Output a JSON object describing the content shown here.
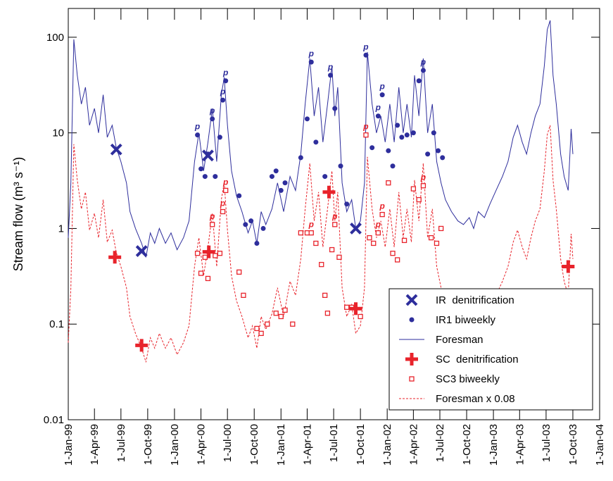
{
  "chart_data": {
    "type": "line",
    "ylabel": "Stream flow (m³ s⁻¹)",
    "log_y": true,
    "ylim": [
      0.01,
      200
    ],
    "yticks": [
      0.01,
      0.1,
      1,
      10,
      100
    ],
    "xlim": [
      "1999-01-01",
      "2004-01-01"
    ],
    "xticks": [
      {
        "value": "1999-01-01",
        "label": "1-Jan-99"
      },
      {
        "value": "1999-04-01",
        "label": "1-Apr-99"
      },
      {
        "value": "1999-07-01",
        "label": "1-Jul-99"
      },
      {
        "value": "1999-10-01",
        "label": "1-Oct-99"
      },
      {
        "value": "2000-01-01",
        "label": "1-Jan-00"
      },
      {
        "value": "2000-04-01",
        "label": "1-Apr-00"
      },
      {
        "value": "2000-07-01",
        "label": "1-Jul-00"
      },
      {
        "value": "2000-10-01",
        "label": "1-Oct-00"
      },
      {
        "value": "2001-01-01",
        "label": "1-Jan-01"
      },
      {
        "value": "2001-04-01",
        "label": "1-Apr-01"
      },
      {
        "value": "2001-07-01",
        "label": "1-Jul-01"
      },
      {
        "value": "2001-10-01",
        "label": "1-Oct-01"
      },
      {
        "value": "2002-01-01",
        "label": "1-Jan-02"
      },
      {
        "value": "2002-04-01",
        "label": "1-Apr-02"
      },
      {
        "value": "2002-07-01",
        "label": "1-Jul-02"
      },
      {
        "value": "2002-10-01",
        "label": "1-Oct-02"
      },
      {
        "value": "2003-01-01",
        "label": "1-Jan-03"
      },
      {
        "value": "2003-04-01",
        "label": "1-Apr-03"
      },
      {
        "value": "2003-07-01",
        "label": "1-Jul-03"
      },
      {
        "value": "2003-10-01",
        "label": "1-Oct-03"
      },
      {
        "value": "2004-01-01",
        "label": "1-Jan-04"
      }
    ],
    "legend": "lower right",
    "series": [
      {
        "name": "IR  denitrification",
        "color": "#2e2e9c",
        "marker": "x",
        "x": [
          "1999-06-15",
          "1999-09-10",
          "2000-04-25",
          "2001-09-15"
        ],
        "values": [
          6.7,
          0.58,
          5.8,
          1.0
        ]
      },
      {
        "name": "IR1 biweekly",
        "color": "#2e2e9c",
        "marker": "dot",
        "x": [
          "2000-03-20",
          "2000-04-01",
          "2000-04-15",
          "2000-04-25",
          "2000-05-10",
          "2000-05-20",
          "2000-06-05",
          "2000-06-15",
          "2000-06-25",
          "2000-08-10",
          "2000-09-01",
          "2000-09-20",
          "2000-10-10",
          "2000-11-01",
          "2000-12-01",
          "2000-12-15",
          "2001-01-01",
          "2001-01-15",
          "2001-03-10",
          "2001-04-01",
          "2001-04-15",
          "2001-05-01",
          "2001-06-01",
          "2001-06-20",
          "2001-07-05",
          "2001-07-25",
          "2001-08-15",
          "2001-10-20",
          "2001-11-10",
          "2001-12-01",
          "2001-12-15",
          "2002-01-05",
          "2002-01-20",
          "2002-02-05",
          "2002-02-20",
          "2002-03-10",
          "2002-04-01",
          "2002-04-20",
          "2002-05-05",
          "2002-05-20",
          "2002-06-10",
          "2002-06-25",
          "2002-07-10"
        ],
        "values": [
          9.5,
          4.2,
          3.5,
          6,
          14,
          3.5,
          9,
          22,
          35,
          2.2,
          1.1,
          1.2,
          0.7,
          1.0,
          3.5,
          4,
          2.5,
          3,
          5.5,
          14,
          55,
          8,
          3.5,
          40,
          18,
          4.5,
          1.8,
          65,
          7,
          15,
          25,
          6.5,
          4.5,
          12,
          9,
          9.5,
          10,
          35,
          45,
          6,
          10,
          6.5,
          5.5
        ]
      },
      {
        "name": "Foresman",
        "color": "#2e2e9c",
        "marker": "line",
        "x": [
          "1999-01-01",
          "1999-01-10",
          "1999-01-20",
          "1999-02-01",
          "1999-02-15",
          "1999-03-01",
          "1999-03-15",
          "1999-04-01",
          "1999-04-15",
          "1999-05-01",
          "1999-05-15",
          "1999-06-01",
          "1999-06-15",
          "1999-07-01",
          "1999-07-20",
          "1999-08-01",
          "1999-08-20",
          "1999-09-10",
          "1999-09-25",
          "1999-10-10",
          "1999-10-25",
          "1999-11-10",
          "1999-12-01",
          "1999-12-20",
          "2000-01-10",
          "2000-02-01",
          "2000-02-20",
          "2000-03-10",
          "2000-03-25",
          "2000-04-10",
          "2000-04-25",
          "2000-05-10",
          "2000-05-25",
          "2000-06-10",
          "2000-06-20",
          "2000-07-01",
          "2000-07-15",
          "2000-08-01",
          "2000-08-20",
          "2000-09-10",
          "2000-09-25",
          "2000-10-10",
          "2000-10-25",
          "2000-11-10",
          "2000-12-01",
          "2000-12-20",
          "2001-01-10",
          "2001-02-01",
          "2001-02-20",
          "2001-03-10",
          "2001-03-25",
          "2001-04-10",
          "2001-04-25",
          "2001-05-10",
          "2001-05-25",
          "2001-06-10",
          "2001-06-25",
          "2001-07-05",
          "2001-07-15",
          "2001-07-30",
          "2001-08-15",
          "2001-09-01",
          "2001-09-15",
          "2001-10-01",
          "2001-10-15",
          "2001-10-25",
          "2001-11-10",
          "2001-11-25",
          "2001-12-10",
          "2001-12-25",
          "2002-01-10",
          "2002-01-25",
          "2002-02-10",
          "2002-02-25",
          "2002-03-10",
          "2002-03-25",
          "2002-04-05",
          "2002-04-20",
          "2002-05-05",
          "2002-05-20",
          "2002-06-05",
          "2002-06-20",
          "2002-07-05",
          "2002-07-20",
          "2002-08-10",
          "2002-09-01",
          "2002-09-20",
          "2002-10-10",
          "2002-10-25",
          "2002-11-10",
          "2002-12-01",
          "2002-12-20",
          "2003-01-10",
          "2003-02-01",
          "2003-02-20",
          "2003-03-10",
          "2003-03-25",
          "2003-04-10",
          "2003-04-25",
          "2003-05-10",
          "2003-05-25",
          "2003-06-10",
          "2003-06-25",
          "2003-07-05",
          "2003-07-15",
          "2003-07-25",
          "2003-08-05",
          "2003-08-20",
          "2003-09-01",
          "2003-09-15",
          "2003-09-25",
          "2003-10-01"
        ],
        "values": [
          0.8,
          3,
          95,
          40,
          20,
          30,
          12,
          18,
          10,
          25,
          9,
          12,
          7,
          5,
          3,
          1.5,
          1.0,
          0.7,
          0.5,
          0.9,
          0.7,
          1.0,
          0.7,
          0.9,
          0.6,
          0.8,
          1.2,
          5,
          10,
          4,
          8,
          18,
          5,
          25,
          38,
          12,
          4,
          2.2,
          1.5,
          0.9,
          1.2,
          0.7,
          1.5,
          1.1,
          1.6,
          3,
          1.5,
          3.5,
          2.5,
          6,
          20,
          60,
          15,
          30,
          8,
          20,
          50,
          15,
          30,
          3,
          1.5,
          2,
          1.0,
          1.2,
          3,
          70,
          20,
          10,
          15,
          8,
          20,
          8,
          30,
          10,
          20,
          9,
          40,
          15,
          60,
          10,
          20,
          5,
          3,
          2,
          1.5,
          1.2,
          1.1,
          1.3,
          1.0,
          1.5,
          1.3,
          1.8,
          2.5,
          3.5,
          5,
          9,
          12,
          8,
          6,
          10,
          15,
          20,
          50,
          120,
          150,
          40,
          20,
          6,
          3.5,
          2.5,
          11,
          6
        ]
      },
      {
        "name": "SC  denitrification",
        "color": "#e8232b",
        "marker": "plus",
        "x": [
          "1999-06-10",
          "1999-09-10",
          "2000-04-28",
          "2001-06-15",
          "2001-09-15",
          "2003-09-15"
        ],
        "values": [
          0.5,
          0.06,
          0.57,
          2.4,
          0.145,
          0.4
        ]
      },
      {
        "name": "SC3 biweekly",
        "color": "#e8232b",
        "marker": "square",
        "x": [
          "2000-03-20",
          "2000-04-01",
          "2000-04-15",
          "2000-04-25",
          "2000-05-10",
          "2000-05-20",
          "2000-06-05",
          "2000-06-15",
          "2000-06-25",
          "2000-08-10",
          "2000-08-25",
          "2000-10-10",
          "2000-10-25",
          "2000-11-15",
          "2000-12-15",
          "2001-01-01",
          "2001-01-15",
          "2001-02-10",
          "2001-03-10",
          "2001-04-01",
          "2001-04-15",
          "2001-05-01",
          "2001-05-20",
          "2001-06-01",
          "2001-06-10",
          "2001-06-25",
          "2001-07-05",
          "2001-07-20",
          "2001-08-15",
          "2001-09-01",
          "2001-10-01",
          "2001-10-20",
          "2001-11-01",
          "2001-11-15",
          "2001-12-01",
          "2001-12-15",
          "2002-01-05",
          "2002-01-20",
          "2002-02-05",
          "2002-03-01",
          "2002-04-01",
          "2002-04-20",
          "2002-05-05",
          "2002-06-01",
          "2002-06-20",
          "2002-07-05"
        ],
        "values": [
          0.55,
          0.34,
          0.5,
          0.3,
          1.1,
          0.52,
          0.55,
          1.5,
          2.5,
          0.35,
          0.2,
          0.09,
          0.08,
          0.1,
          0.13,
          0.12,
          0.14,
          0.1,
          0.9,
          0.9,
          0.9,
          0.7,
          0.42,
          0.2,
          0.13,
          0.6,
          1.1,
          0.5,
          0.15,
          0.15,
          0.12,
          9.5,
          0.8,
          0.7,
          0.9,
          1.4,
          3,
          0.55,
          0.47,
          0.75,
          2.6,
          2.0,
          2.8,
          0.8,
          0.7,
          1.0
        ]
      },
      {
        "name": "Foresman x 0.08",
        "color": "#e8232b",
        "marker": "dashed",
        "x": [
          "1999-01-01",
          "1999-01-10",
          "1999-01-20",
          "1999-02-01",
          "1999-02-15",
          "1999-03-01",
          "1999-03-15",
          "1999-04-01",
          "1999-04-15",
          "1999-05-01",
          "1999-05-15",
          "1999-06-01",
          "1999-06-15",
          "1999-07-01",
          "1999-07-20",
          "1999-08-01",
          "1999-08-20",
          "1999-09-10",
          "1999-09-25",
          "1999-10-10",
          "1999-10-25",
          "1999-11-10",
          "1999-12-01",
          "1999-12-20",
          "2000-01-10",
          "2000-02-01",
          "2000-02-20",
          "2000-03-10",
          "2000-03-25",
          "2000-04-10",
          "2000-04-25",
          "2000-05-10",
          "2000-05-25",
          "2000-06-10",
          "2000-06-20",
          "2000-07-01",
          "2000-07-15",
          "2000-08-01",
          "2000-08-20",
          "2000-09-10",
          "2000-09-25",
          "2000-10-10",
          "2000-10-25",
          "2000-11-10",
          "2000-12-01",
          "2000-12-20",
          "2001-01-10",
          "2001-02-01",
          "2001-02-20",
          "2001-03-10",
          "2001-03-25",
          "2001-04-10",
          "2001-04-25",
          "2001-05-10",
          "2001-05-25",
          "2001-06-10",
          "2001-06-25",
          "2001-07-05",
          "2001-07-15",
          "2001-07-30",
          "2001-08-15",
          "2001-09-01",
          "2001-09-15",
          "2001-10-01",
          "2001-10-15",
          "2001-10-25",
          "2001-11-10",
          "2001-11-25",
          "2001-12-10",
          "2001-12-25",
          "2002-01-10",
          "2002-01-25",
          "2002-02-10",
          "2002-02-25",
          "2002-03-10",
          "2002-03-25",
          "2002-04-05",
          "2002-04-20",
          "2002-05-05",
          "2002-05-20",
          "2002-06-05",
          "2002-06-20",
          "2002-07-05",
          "2002-07-20",
          "2002-08-10",
          "2002-09-01",
          "2002-09-20",
          "2002-10-10",
          "2002-10-25",
          "2002-11-10",
          "2002-12-01",
          "2002-12-20",
          "2003-01-10",
          "2003-02-01",
          "2003-02-20",
          "2003-03-10",
          "2003-03-25",
          "2003-04-10",
          "2003-04-25",
          "2003-05-10",
          "2003-05-25",
          "2003-06-10",
          "2003-06-25",
          "2003-07-05",
          "2003-07-15",
          "2003-07-25",
          "2003-08-05",
          "2003-08-20",
          "2003-09-01",
          "2003-09-15",
          "2003-09-25",
          "2003-10-01"
        ],
        "values": [
          0.064,
          0.24,
          7.6,
          3.2,
          1.6,
          2.4,
          0.96,
          1.44,
          0.8,
          2,
          0.72,
          0.96,
          0.56,
          0.4,
          0.24,
          0.12,
          0.08,
          0.056,
          0.04,
          0.072,
          0.056,
          0.08,
          0.056,
          0.072,
          0.048,
          0.064,
          0.096,
          0.4,
          0.8,
          0.32,
          0.64,
          1.44,
          0.4,
          2,
          3.04,
          0.96,
          0.32,
          0.176,
          0.12,
          0.072,
          0.096,
          0.056,
          0.12,
          0.088,
          0.128,
          0.24,
          0.12,
          0.28,
          0.2,
          0.48,
          1.6,
          4.8,
          1.2,
          2.4,
          0.64,
          1.6,
          4,
          1.2,
          2.4,
          0.24,
          0.12,
          0.16,
          0.08,
          0.096,
          0.24,
          5.6,
          1.6,
          0.8,
          1.2,
          0.64,
          1.6,
          0.64,
          2.4,
          0.8,
          1.6,
          0.72,
          3.2,
          1.2,
          4.8,
          0.8,
          1.6,
          0.4,
          0.24,
          0.16,
          0.12,
          0.096,
          0.088,
          0.104,
          0.08,
          0.12,
          0.104,
          0.144,
          0.2,
          0.28,
          0.4,
          0.72,
          0.96,
          0.64,
          0.48,
          0.8,
          1.2,
          1.6,
          4,
          9.6,
          12,
          3.2,
          1.6,
          0.48,
          0.28,
          0.2,
          0.88,
          0.48
        ]
      }
    ],
    "annotations": [
      {
        "text": "p",
        "series": 1,
        "x": "2000-03-20",
        "y": 9.5
      },
      {
        "text": "p",
        "series": 1,
        "x": "2000-05-10",
        "y": 14
      },
      {
        "text": "p",
        "series": 1,
        "x": "2000-06-15",
        "y": 22
      },
      {
        "text": "p",
        "series": 1,
        "x": "2000-06-25",
        "y": 35
      },
      {
        "text": "p",
        "series": 1,
        "x": "2001-04-15",
        "y": 55
      },
      {
        "text": "p",
        "series": 1,
        "x": "2001-06-20",
        "y": 40
      },
      {
        "text": "p",
        "series": 1,
        "x": "2001-10-20",
        "y": 65
      },
      {
        "text": "p",
        "series": 1,
        "x": "2001-12-01",
        "y": 15
      },
      {
        "text": "p",
        "series": 1,
        "x": "2001-12-15",
        "y": 25
      },
      {
        "text": "p",
        "series": 1,
        "x": "2002-05-05",
        "y": 45
      },
      {
        "text": "p",
        "series": 4,
        "x": "2000-05-10",
        "y": 1.1
      },
      {
        "text": "p",
        "series": 4,
        "x": "2000-06-15",
        "y": 1.5
      },
      {
        "text": "p",
        "series": 4,
        "x": "2000-06-25",
        "y": 2.5
      },
      {
        "text": "p",
        "series": 4,
        "x": "2001-04-15",
        "y": 0.9
      },
      {
        "text": "p",
        "series": 4,
        "x": "2001-07-05",
        "y": 1.1
      },
      {
        "text": "p",
        "series": 4,
        "x": "2001-10-20",
        "y": 9.5
      },
      {
        "text": "p",
        "series": 4,
        "x": "2001-12-01",
        "y": 0.9
      },
      {
        "text": "p",
        "series": 4,
        "x": "2001-12-15",
        "y": 1.4
      },
      {
        "text": "p",
        "series": 4,
        "x": "2002-05-05",
        "y": 2.8
      }
    ]
  }
}
